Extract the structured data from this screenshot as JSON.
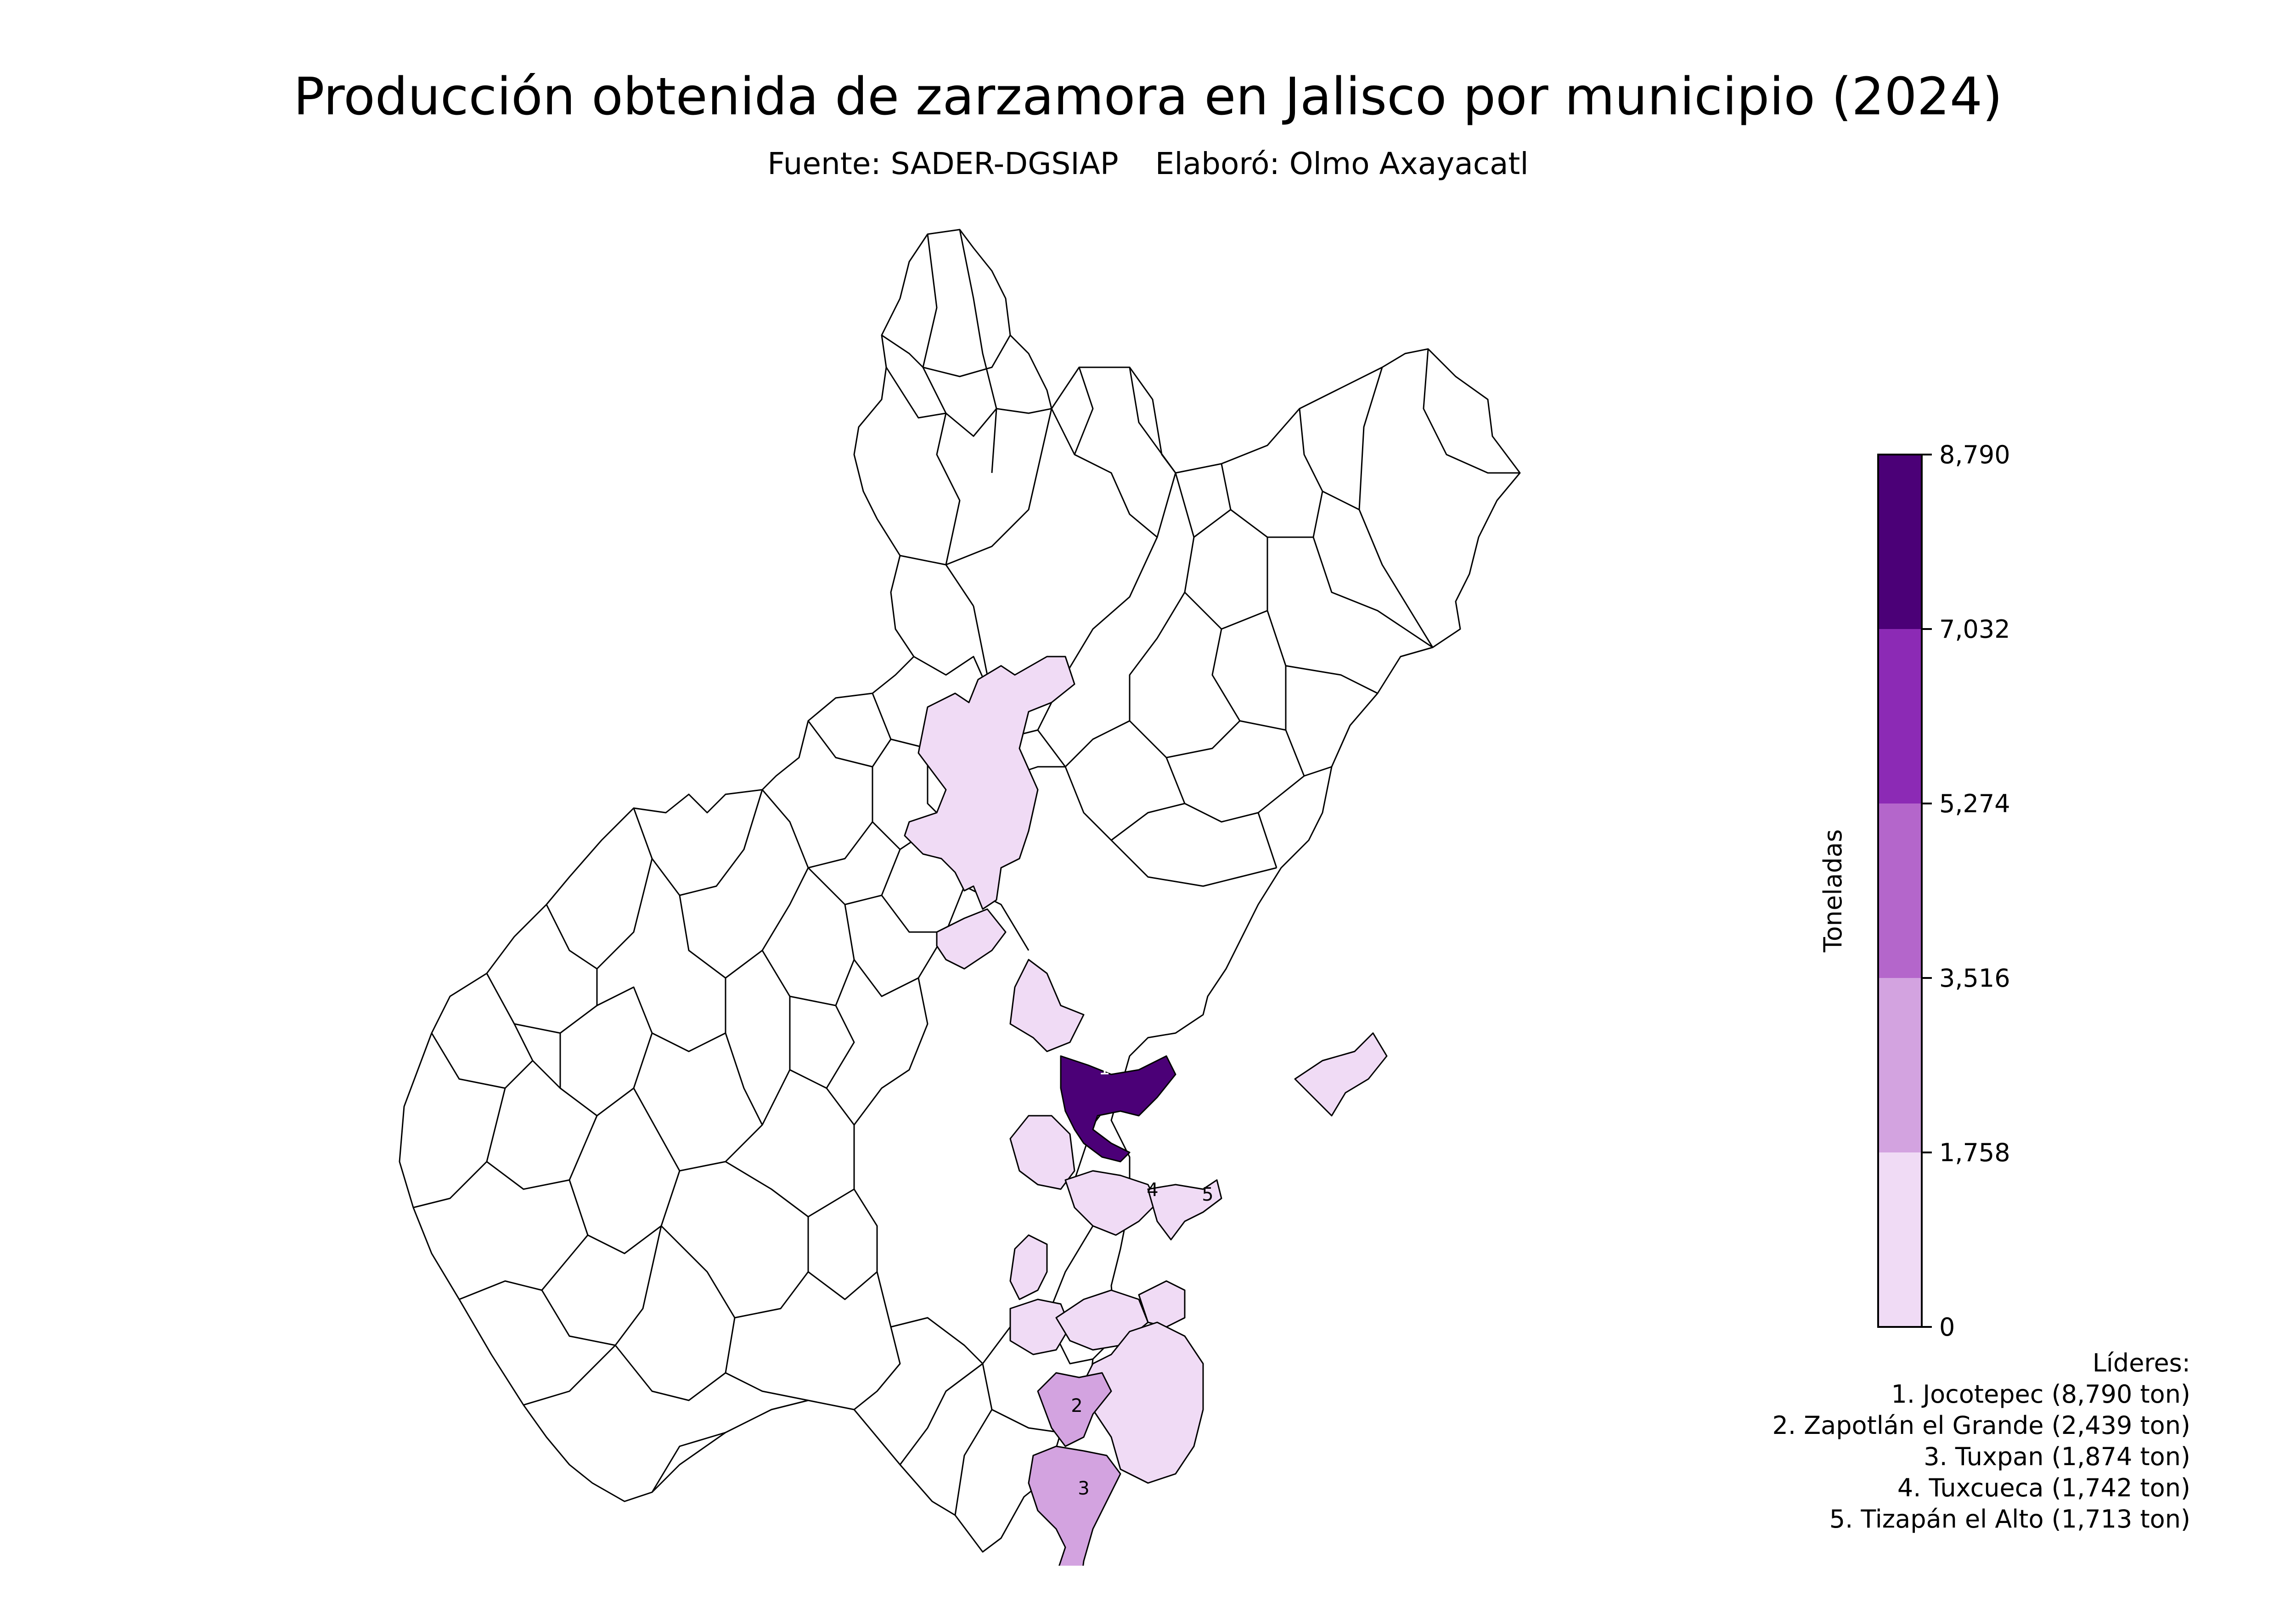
{
  "title": "Producción obtenida de zarzamora en Jalisco por municipio (2024)",
  "subtitle": {
    "source": "Fuente: SADER-DGSIAP",
    "author": "Elaboró: Olmo Axayacatl"
  },
  "colorbar": {
    "label": "Toneladas",
    "ticks": [
      "0",
      "1,758",
      "3,516",
      "5,274",
      "7,032",
      "8,790"
    ],
    "tick_values": [
      0,
      1758,
      3516,
      5274,
      7032,
      8790
    ],
    "colors": [
      "#f0dbf5",
      "#d3a3e0",
      "#b466cb",
      "#8c2ab5",
      "#4b0077"
    ]
  },
  "leaders": {
    "title": "Líderes:",
    "items": [
      {
        "rank": "1",
        "name": "Jocotepec",
        "tons": 8790,
        "text": "1. Jocotepec (8,790 ton)"
      },
      {
        "rank": "2",
        "name": "Zapotlán el Grande",
        "tons": 2439,
        "text": "2. Zapotlán el Grande (2,439 ton)"
      },
      {
        "rank": "3",
        "name": "Tuxpan",
        "tons": 1874,
        "text": "3. Tuxpan (1,874 ton)"
      },
      {
        "rank": "4",
        "name": "Tuxcueca",
        "tons": 1742,
        "text": "4. Tuxcueca (1,742 ton)"
      },
      {
        "rank": "5",
        "name": "Tizapán el Alto",
        "tons": 1713,
        "text": "5. Tizapán el Alto (1,713 ton)"
      }
    ]
  },
  "colors": {
    "no_production": "#ffffff",
    "low": "#f0dbf5",
    "mid": "#d3a3e0",
    "top": "#4b0077"
  }
}
